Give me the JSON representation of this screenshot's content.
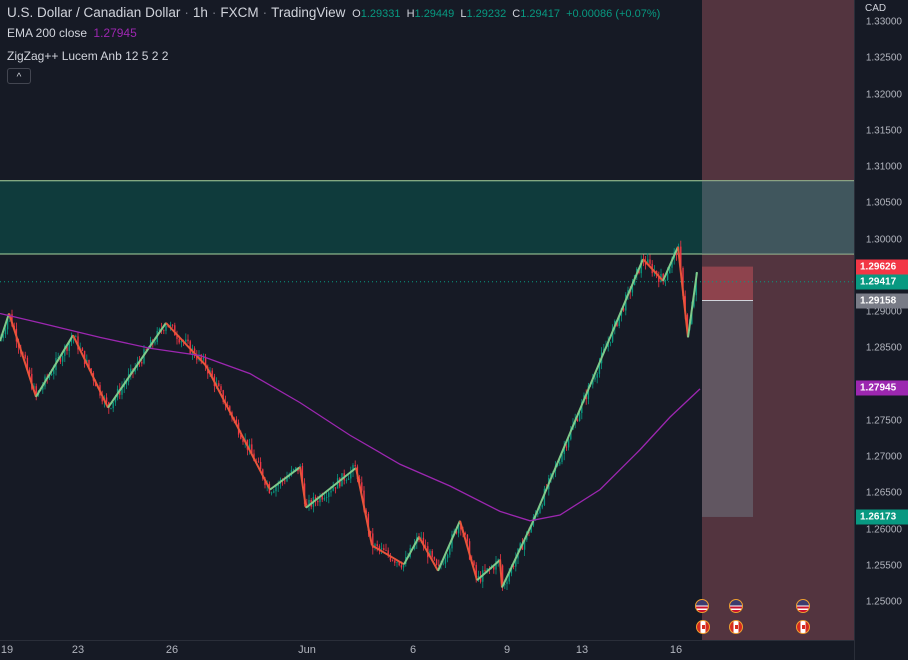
{
  "header": {
    "symbol": "U.S. Dollar / Canadian Dollar",
    "interval": "1h",
    "broker": "FXCM",
    "platform": "TradingView",
    "ohlc": {
      "o_label": "O",
      "o": "1.29331",
      "h_label": "H",
      "h": "1.29449",
      "l_label": "L",
      "l": "1.29232",
      "c_label": "C",
      "c": "1.29417",
      "change": "+0.00086 (+0.07%)"
    }
  },
  "indicators": [
    {
      "label": "EMA 200 close",
      "value": "1.27945",
      "color": "#9c27b0"
    },
    {
      "label": "ZigZag++ Lucem Anb 12 5 2 2",
      "value": ""
    }
  ],
  "collapse_icon": "chevron-up-icon",
  "price_axis": {
    "currency": "CAD",
    "ticks": [
      "1.33000",
      "1.32500",
      "1.32000",
      "1.31500",
      "1.31000",
      "1.30500",
      "1.30000",
      "1.29500",
      "1.29000",
      "1.28500",
      "1.28000",
      "1.27500",
      "1.27000",
      "1.26500",
      "1.26000",
      "1.25500",
      "1.25000"
    ],
    "tags": [
      {
        "label": "1.29626",
        "price": 1.29626,
        "color": "#f23645"
      },
      {
        "label": "1.29417",
        "price": 1.29417,
        "color": "#089981"
      },
      {
        "label": "1.29158",
        "price": 1.29158,
        "color": "#787b86"
      },
      {
        "label": "1.27945",
        "price": 1.27945,
        "color": "#9c27b0"
      },
      {
        "label": "1.26173",
        "price": 1.26173,
        "color": "#089981"
      }
    ]
  },
  "time_axis": {
    "ticks": [
      "19",
      "23",
      "26",
      "Jun",
      "6",
      "9",
      "13",
      "16"
    ]
  },
  "zones": {
    "supply_top": 1.3081,
    "supply_bottom": 1.298
  },
  "position": {
    "stop": 1.29626,
    "entry": 1.29158,
    "target": 1.26173
  },
  "events": [
    {
      "icon": "us-flag-icon"
    },
    {
      "icon": "ca-flag-icon"
    },
    {
      "icon": "us-flag-icon"
    },
    {
      "icon": "ca-flag-icon"
    },
    {
      "icon": "us-flag-icon"
    },
    {
      "icon": "ca-flag-icon"
    }
  ],
  "colors": {
    "up": "#089981",
    "down": "#f23645",
    "zigzag_up": "#7fc98a",
    "zigzag_down": "#e8553a",
    "ema": "#9c27b0",
    "zone": "#0f3b3c",
    "future": "#5e3a44"
  }
}
